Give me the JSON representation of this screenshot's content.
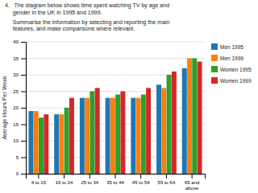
{
  "chart_data": {
    "type": "bar",
    "title": "4.   The diagram below shows time spent watching TV by age and\n     gender in the UK in 1995 and 1999.",
    "subtitle": "     Summarise the information by selecting and reporting the main\n     features, and make comparisons where relevant.",
    "categories": [
      "4 to 15",
      "16 to 24",
      "25 to 34",
      "35 to 44",
      "45 to 54",
      "55 to 64",
      "65 and\nabove"
    ],
    "series": [
      {
        "name": "Men 1995",
        "values": [
          19,
          18,
          23,
          23,
          23,
          27,
          32
        ]
      },
      {
        "name": "Men 1999",
        "values": [
          19,
          18,
          23,
          23,
          23,
          26,
          35
        ]
      },
      {
        "name": "Women 1995",
        "values": [
          17,
          20,
          25,
          24,
          24,
          30,
          35
        ]
      },
      {
        "name": "Women 1999",
        "values": [
          18,
          23,
          26,
          25,
          26,
          31,
          34
        ]
      }
    ],
    "ylabel": "Average Hours Per Week",
    "ylim": [
      0,
      40
    ],
    "yticks": [
      0,
      5,
      10,
      15,
      20,
      25,
      30,
      35,
      40
    ],
    "grid": true,
    "legend": "right"
  }
}
